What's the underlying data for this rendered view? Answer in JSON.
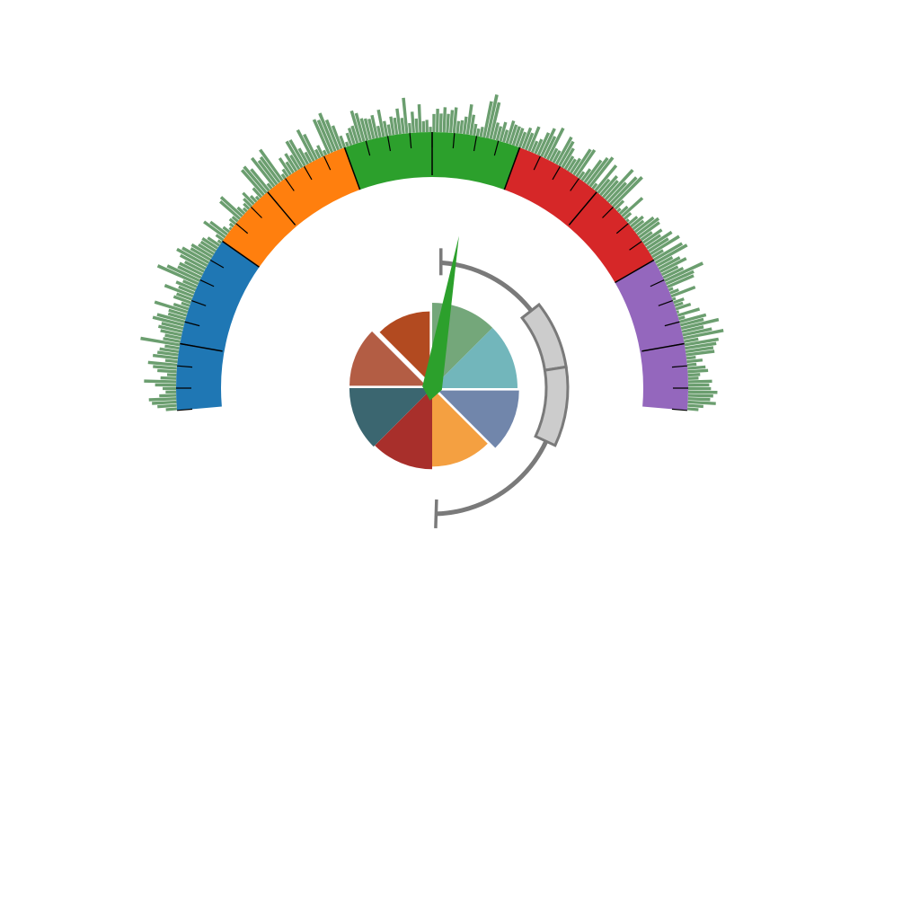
{
  "chart_data": {
    "type": "gauge",
    "title": "",
    "gauge": {
      "angle_range": [
        -95,
        95
      ],
      "bands": [
        {
          "from": -95,
          "to": -55,
          "color": "#1f77b4"
        },
        {
          "from": -55,
          "to": -20,
          "color": "#ff7f0e"
        },
        {
          "from": -20,
          "to": 20,
          "color": "#2ca02c"
        },
        {
          "from": 20,
          "to": 60,
          "color": "#d62728"
        },
        {
          "from": 60,
          "to": 95,
          "color": "#9467bd"
        }
      ],
      "major_ticks": [
        -80,
        -40,
        0,
        40,
        80
      ],
      "minor_tick_step": 5,
      "needle_angle": 10,
      "needle_color": "#2ca02c"
    },
    "outer_histogram": {
      "color": "#6b9e6f",
      "values": [
        0.19,
        0.33,
        0.42,
        0.47,
        0.29,
        0.18,
        0.23,
        0.36,
        0.55,
        0.27,
        0.16,
        0.33,
        0.41,
        0.5,
        0.21,
        0.43,
        0.36,
        0.33,
        0.25,
        0.68,
        0.3,
        0.28,
        0.37,
        0.42,
        0.38,
        0.55,
        0.49,
        0.31,
        0.32,
        0.59,
        0.27,
        0.15,
        0.31,
        0.28,
        0.52,
        0.29,
        0.36,
        0.26,
        0.76,
        0.61,
        0.44,
        0.44,
        0.37,
        0.49,
        0.59,
        0.52,
        0.39,
        0.41,
        0.31,
        0.3,
        0.31,
        0.24,
        0.07,
        0.15,
        0.45,
        0.36,
        0.13,
        0.04,
        0.08,
        0.13,
        0.12,
        0.45,
        0.49,
        0.16,
        0.08,
        0.13,
        0.19,
        0.27,
        0.14,
        0.07,
        0.21,
        0.57,
        0.59,
        0.48,
        0.11,
        0.62,
        0.51,
        0.54,
        0.65,
        0.09,
        0.15,
        0.34,
        0.22,
        0.35,
        0.28,
        0.52,
        0.51,
        0.31,
        0.2,
        0.6,
        0.48,
        0.16,
        0.21,
        0.09,
        0.64,
        0.6,
        0.7,
        0.55,
        0.42,
        0.21,
        0.08,
        0.22,
        0.29,
        0.31,
        0.56,
        0.5,
        0.39,
        0.37,
        0.35,
        0.4,
        0.2,
        0.47,
        0.26,
        0.19,
        0.32,
        0.29,
        0.44,
        0.27,
        0.61,
        0.17,
        0.36,
        0.24,
        0.48,
        0.19,
        0.21,
        0.09,
        0.31,
        0.4,
        0.32,
        0.43,
        0.32,
        0.39,
        0.44,
        0.21,
        0.23,
        0.3,
        0.52,
        0.35,
        0.2,
        0.13,
        0.17,
        0.63,
        0.76,
        0.64,
        0.3,
        0.25,
        0.34,
        0.22,
        0.4,
        0.35,
        0.34,
        0.33,
        0.28,
        0.38,
        0.31,
        0.45,
        0.21,
        0.27,
        0.42,
        0.53,
        0.41,
        0.6,
        0.24,
        0.23,
        0.53,
        0.48,
        0.38,
        0.26,
        0.24,
        0.29,
        0.52,
        0.55,
        0.14,
        0.24,
        0.47,
        0.57,
        0.63,
        0.11,
        0.56,
        0.3,
        0.43,
        0.38,
        0.69,
        0.45,
        0.64,
        0.71,
        0.2,
        0.07,
        0.18,
        0.47,
        0.15,
        0.05,
        0.19,
        0.27,
        0.23,
        0.4,
        0.46,
        0.43,
        0.23,
        0.39,
        0.32,
        0.51,
        0.4,
        0.58,
        0.22,
        0.56,
        0.62,
        0.3,
        0.41,
        0.5,
        0.31,
        0.38,
        0.72,
        0.52,
        0.49,
        0.08,
        0.16,
        0.44,
        0.06,
        0.19,
        0.15,
        0.27,
        0.04,
        0.39,
        0.11,
        0.47,
        0.41,
        0.66,
        0.38,
        0.51,
        0.7,
        0.25,
        0.59,
        0.54,
        0.48,
        0.49,
        0.16,
        0.27,
        0.16,
        0.31,
        0.35,
        0.21,
        0.18,
        0.41,
        0.36,
        0.39,
        0.5,
        0.43,
        0.38,
        0.48,
        0.27,
        0.19
      ]
    },
    "inner_polar": {
      "values": [
        1.0,
        1.0,
        0.95,
        0.92,
        0.95,
        0.97,
        0.9,
        0.83
      ],
      "colors": [
        "#74a77a",
        "#72b6bb",
        "#7186ab",
        "#f4a041",
        "#a82f2b",
        "#3b6670",
        "#b35d44",
        "#b24a20"
      ],
      "exploded": [
        false,
        false,
        true,
        false,
        false,
        false,
        true,
        true
      ]
    },
    "side_arc": {
      "color": "#7a7a7a",
      "bar_fill": "#cccccc",
      "segments": 2
    }
  }
}
